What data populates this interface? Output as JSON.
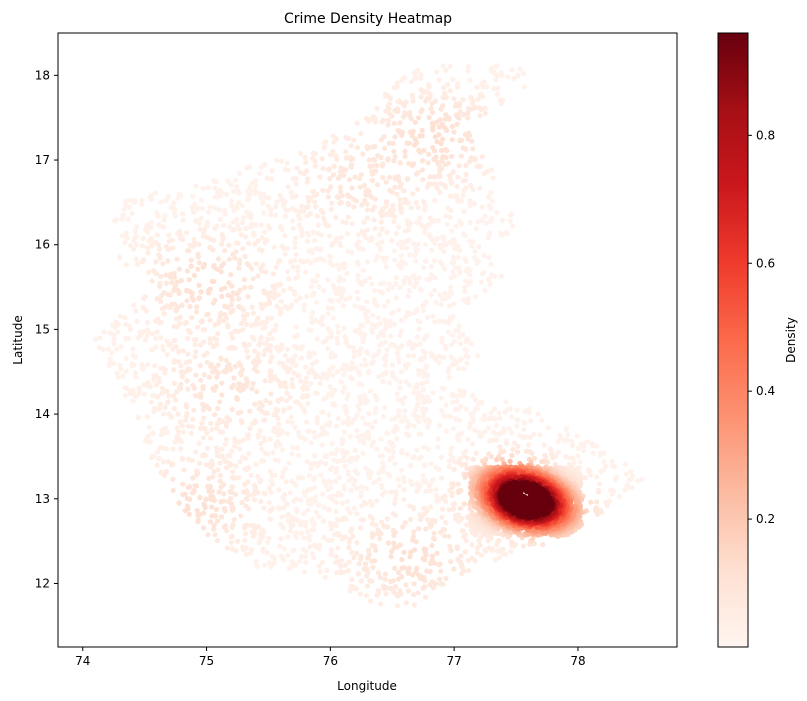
{
  "chart_data": {
    "type": "heatmap",
    "title": "Crime Density Heatmap",
    "xlabel": "Longitude",
    "ylabel": "Latitude",
    "xlim": [
      73.8,
      78.8
    ],
    "ylim": [
      11.25,
      18.5
    ],
    "x_ticks": [
      74,
      75,
      76,
      77,
      78
    ],
    "y_ticks": [
      12,
      13,
      14,
      15,
      16,
      17,
      18
    ],
    "grid": false,
    "colormap": "Reds",
    "colorbar": {
      "label": "Density",
      "range": [
        0.0,
        0.96
      ],
      "ticks": [
        0.2,
        0.4,
        0.6,
        0.8
      ],
      "colors": [
        "#fff5f0",
        "#fee0d2",
        "#fcbba1",
        "#fc9272",
        "#fb6a4a",
        "#ef3b2c",
        "#cb181d",
        "#a50f15",
        "#67000d"
      ]
    },
    "hotspots": [
      {
        "lon": 77.58,
        "lat": 12.97,
        "density": 0.95
      },
      {
        "lon": 77.45,
        "lat": 13.15,
        "density": 0.55
      },
      {
        "lon": 77.75,
        "lat": 12.85,
        "density": 0.45
      },
      {
        "lon": 76.65,
        "lat": 12.3,
        "density": 0.1
      },
      {
        "lon": 75.0,
        "lat": 15.55,
        "density": 0.1
      },
      {
        "lon": 76.85,
        "lat": 17.3,
        "density": 0.1
      },
      {
        "lon": 74.9,
        "lat": 12.9,
        "density": 0.1
      },
      {
        "lon": 75.15,
        "lat": 14.3,
        "density": 0.08
      },
      {
        "lon": 76.2,
        "lat": 16.7,
        "density": 0.06
      }
    ]
  }
}
